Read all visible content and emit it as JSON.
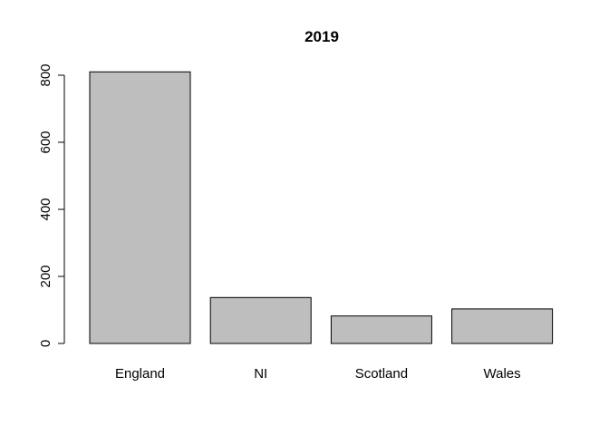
{
  "chart_data": {
    "type": "bar",
    "title": "2019",
    "xlabel": "",
    "ylabel": "",
    "categories": [
      "England",
      "NI",
      "Scotland",
      "Wales"
    ],
    "values": [
      810,
      137,
      82,
      103
    ],
    "ylim": [
      0,
      800
    ],
    "y_ticks": [
      "0",
      "200",
      "400",
      "600",
      "800"
    ],
    "grid": false,
    "bar_color": "#bebebe"
  }
}
